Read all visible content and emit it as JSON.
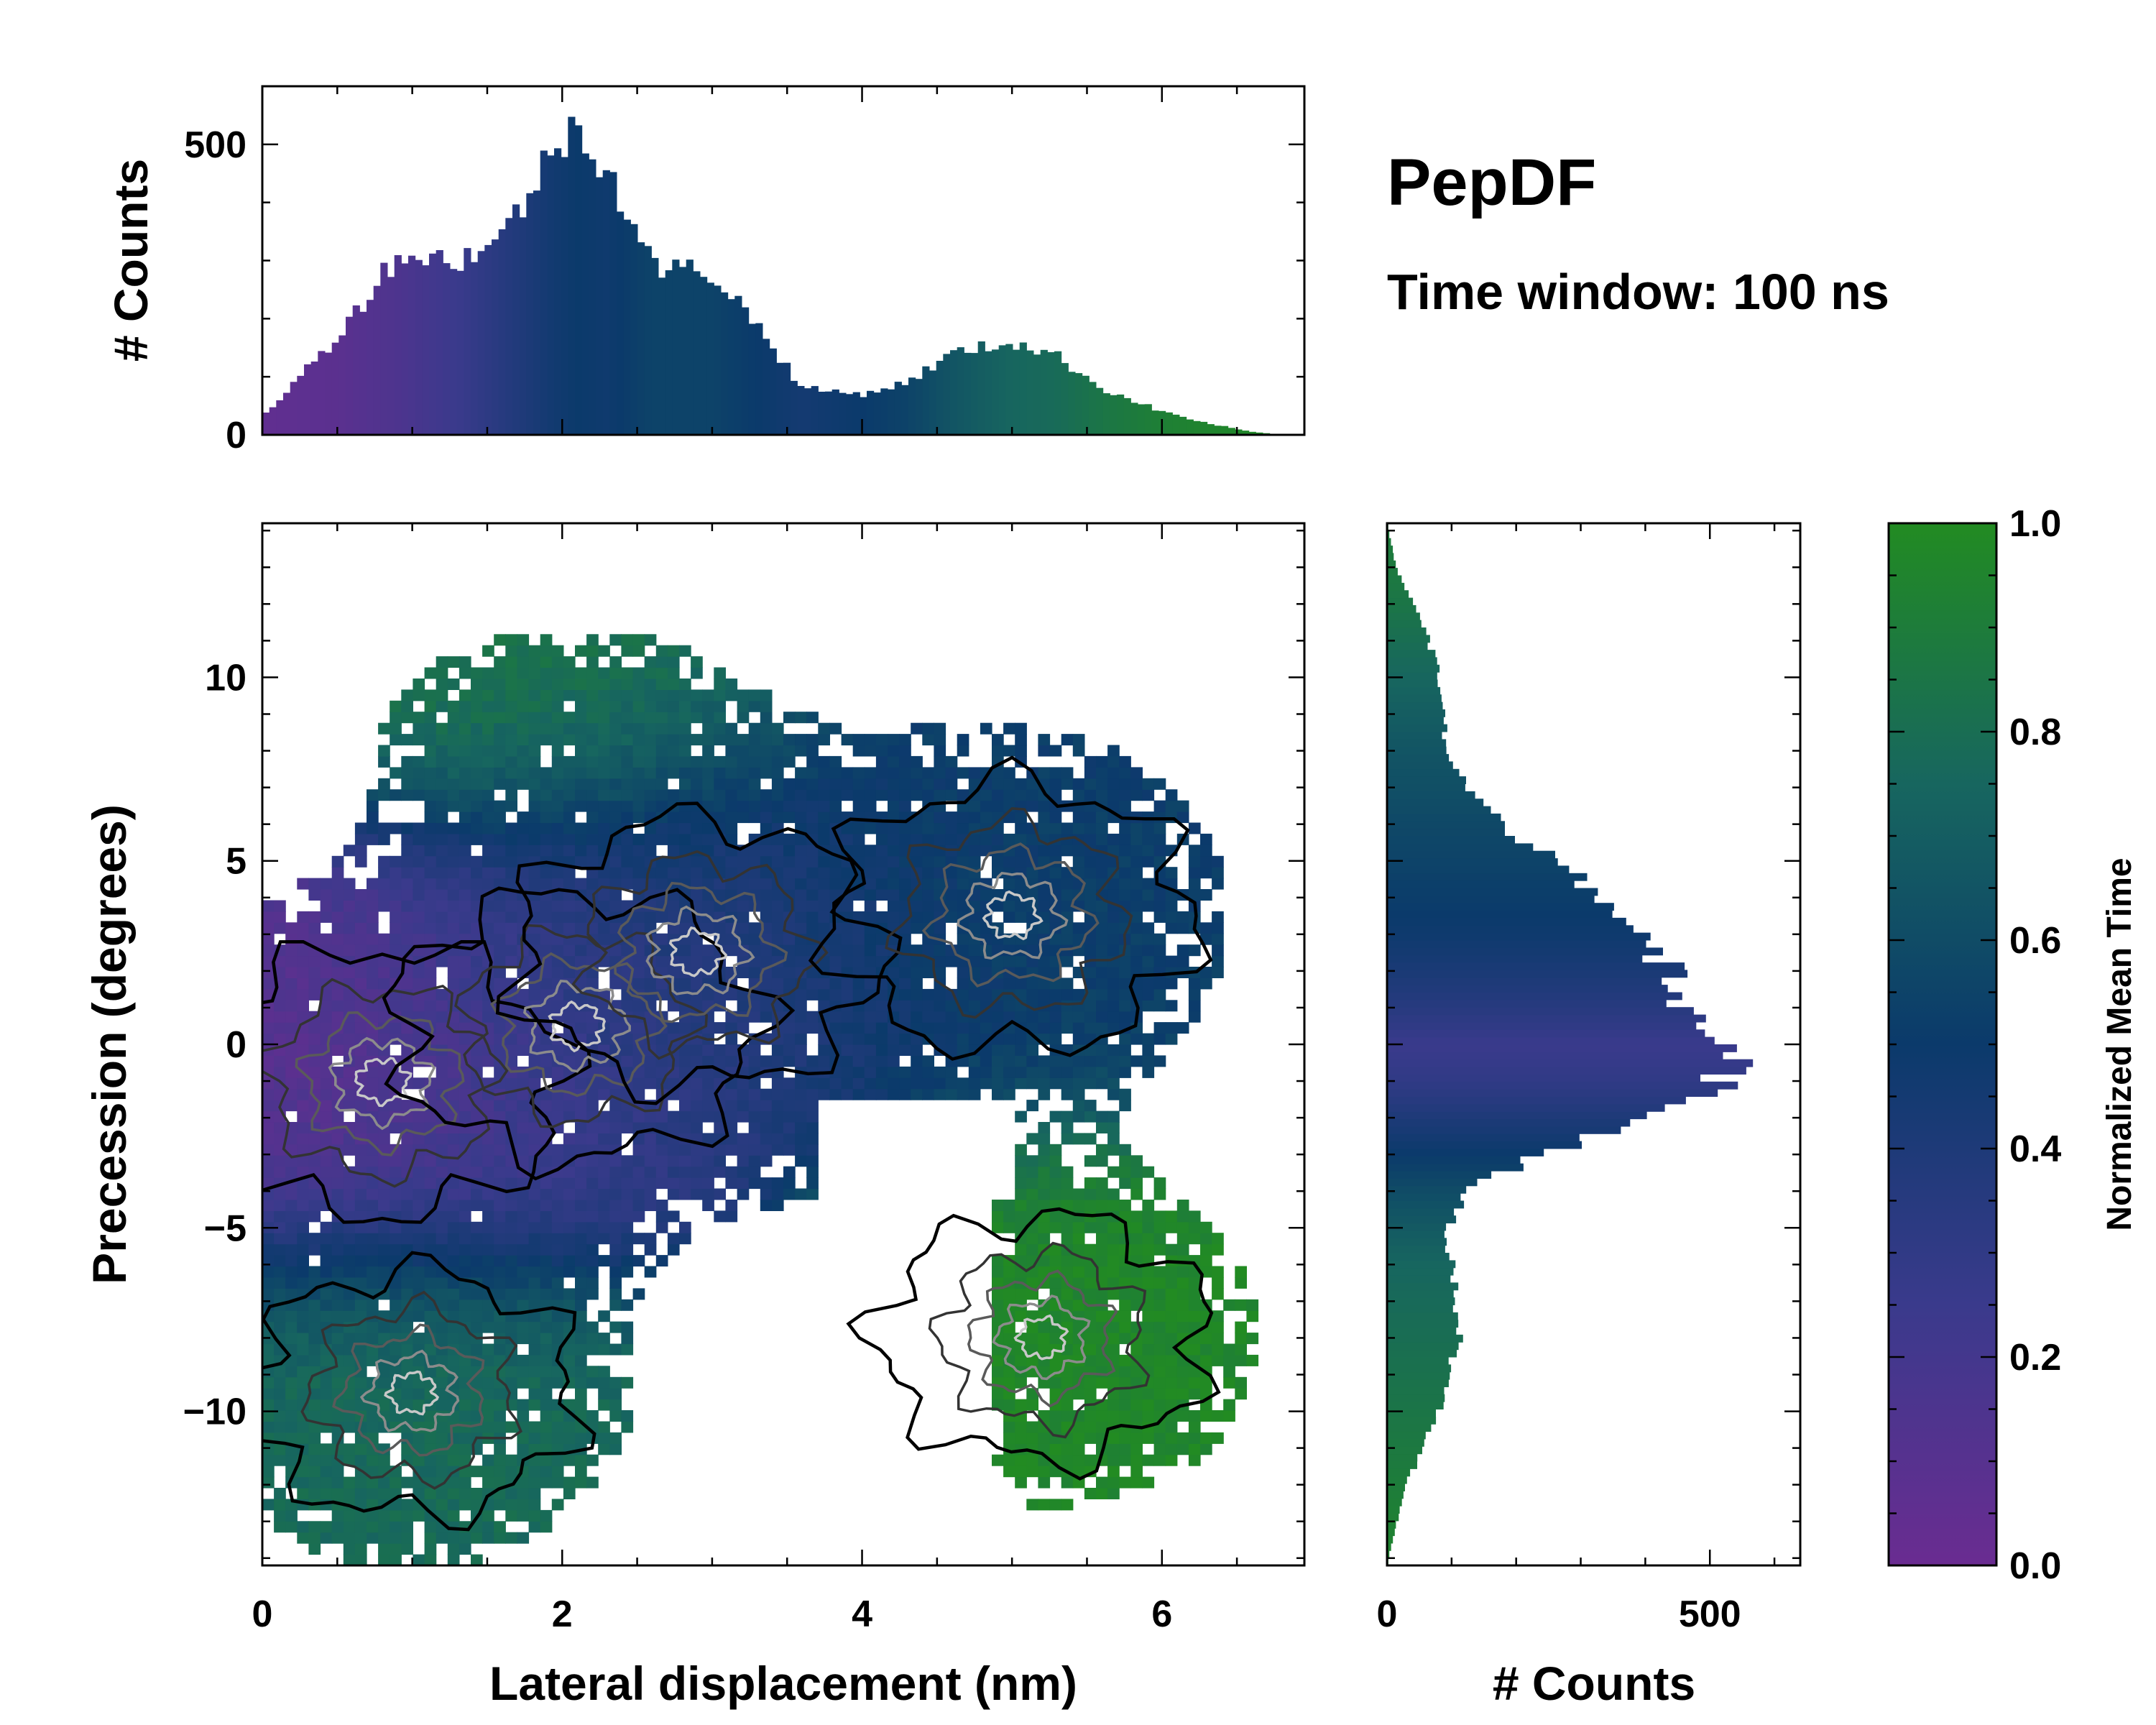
{
  "chart_data": [
    {
      "id": "joint",
      "type": "heatmap",
      "title": "PepDF",
      "subtitle": "Time window: 100 ns",
      "xlabel": "Lateral displacement (nm)",
      "ylabel": "Precession (degrees)",
      "xlim": [
        0,
        6.95
      ],
      "ylim": [
        -14.2,
        14.2
      ],
      "x_ticks": [
        "0",
        "2",
        "4",
        "6"
      ],
      "x_tick_values": [
        0,
        2,
        4,
        6
      ],
      "y_ticks": [
        "−10",
        "−5",
        "0",
        "5",
        "10"
      ],
      "y_tick_values": [
        -10,
        -5,
        0,
        5,
        10
      ],
      "density_peaks": [
        {
          "x": 0.8,
          "y": -1.0,
          "mean_time": 0.08
        },
        {
          "x": 2.1,
          "y": 0.5,
          "mean_time": 0.3
        },
        {
          "x": 2.9,
          "y": 2.5,
          "mean_time": 0.42
        },
        {
          "x": 5.0,
          "y": 3.5,
          "mean_time": 0.52
        },
        {
          "x": 1.0,
          "y": -9.5,
          "mean_time": 0.78
        },
        {
          "x": 5.2,
          "y": -8.0,
          "mean_time": 0.97
        }
      ]
    },
    {
      "id": "top_hist",
      "type": "bar",
      "ylabel": "# Counts",
      "ylim": [
        0,
        600
      ],
      "y_ticks": [
        "0",
        "500"
      ],
      "y_tick_values": [
        0,
        500
      ],
      "x": [
        0.0,
        0.5,
        0.9,
        1.3,
        1.6,
        1.9,
        2.1,
        2.3,
        2.6,
        3.0,
        3.3,
        3.6,
        4.0,
        4.3,
        4.6,
        5.0,
        5.3,
        5.6,
        6.0,
        6.3,
        6.6,
        6.8
      ],
      "values": [
        30,
        170,
        310,
        300,
        340,
        470,
        540,
        460,
        290,
        280,
        190,
        80,
        70,
        90,
        140,
        160,
        135,
        80,
        40,
        20,
        5,
        0
      ],
      "mean_time": [
        0.05,
        0.08,
        0.15,
        0.25,
        0.35,
        0.45,
        0.5,
        0.48,
        0.55,
        0.55,
        0.5,
        0.45,
        0.5,
        0.55,
        0.65,
        0.75,
        0.78,
        0.85,
        0.92,
        0.95,
        0.97,
        0.98
      ]
    },
    {
      "id": "right_hist",
      "type": "bar",
      "orientation": "horizontal",
      "xlabel": "# Counts",
      "xlim": [
        0,
        640
      ],
      "x_ticks": [
        "0",
        "500"
      ],
      "x_tick_values": [
        0,
        500
      ],
      "y": [
        -14,
        -12,
        -10,
        -8,
        -6,
        -5,
        -4,
        -3,
        -2,
        -1,
        0,
        1,
        2,
        3,
        4,
        5,
        6,
        7,
        8,
        9,
        10,
        11,
        12,
        13,
        14
      ],
      "values": [
        2,
        30,
        80,
        110,
        100,
        95,
        120,
        240,
        420,
        520,
        560,
        470,
        440,
        380,
        330,
        260,
        180,
        130,
        95,
        85,
        80,
        65,
        40,
        15,
        2
      ],
      "mean_time": [
        0.95,
        0.9,
        0.85,
        0.8,
        0.75,
        0.68,
        0.6,
        0.5,
        0.4,
        0.3,
        0.25,
        0.35,
        0.42,
        0.48,
        0.52,
        0.55,
        0.58,
        0.62,
        0.65,
        0.7,
        0.75,
        0.8,
        0.85,
        0.88,
        0.9
      ]
    },
    {
      "id": "colorbar",
      "type": "colorbar",
      "label": "Normalized Mean Time",
      "range": [
        0.0,
        1.0
      ],
      "ticks": [
        "0.0",
        "0.2",
        "0.4",
        "0.6",
        "0.8",
        "1.0"
      ],
      "tick_values": [
        0.0,
        0.2,
        0.4,
        0.6,
        0.8,
        1.0
      ],
      "colormap": [
        "#6a2c91",
        "#3a3a8c",
        "#0b3a6b",
        "#17665f",
        "#228b22"
      ]
    }
  ]
}
